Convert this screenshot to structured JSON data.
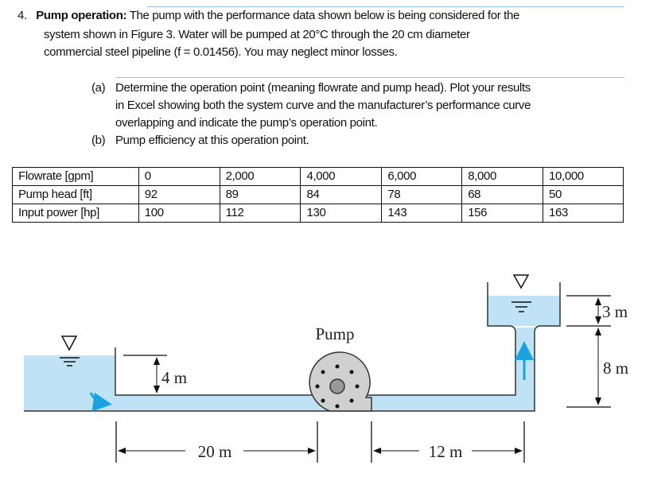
{
  "problem": {
    "number": "4.",
    "title": "Pump operation:",
    "line1": " The pump with the performance data shown below is being considered for the",
    "line2": "system shown in Figure 3. Water will be pumped at 20°C through the 20 cm diameter",
    "line3": "commercial steel pipeline (f = 0.01456). You may neglect minor losses."
  },
  "parts": [
    {
      "label": "(a)",
      "lines": [
        "Determine the operation point (meaning flowrate and pump head). Plot your results",
        "in Excel showing both the system curve and the manufacturer’s performance curve",
        "overlapping and indicate the pump’s operation point."
      ]
    },
    {
      "label": "(b)",
      "lines": [
        "Pump efficiency at this operation point."
      ]
    }
  ],
  "table": {
    "rows": [
      [
        "Flowrate [gpm]",
        "0",
        "2,000",
        "4,000",
        "6,000",
        "8,000",
        "10,000"
      ],
      [
        "Pump head [ft]",
        "92",
        "89",
        "84",
        "78",
        "68",
        "50"
      ],
      [
        "Input power [hp]",
        "100",
        "112",
        "130",
        "143",
        "156",
        "163"
      ]
    ]
  },
  "figure": {
    "pump_label": "Pump",
    "dim_4m": "4 m",
    "dim_3m": "3 m",
    "dim_8m": "8 m",
    "dim_20m": "20 m",
    "dim_12m": "12 m",
    "colors": {
      "water": "#bfe3f5",
      "flow_arrow": "#1aa3e0",
      "pump": "#d0d0d0"
    }
  }
}
